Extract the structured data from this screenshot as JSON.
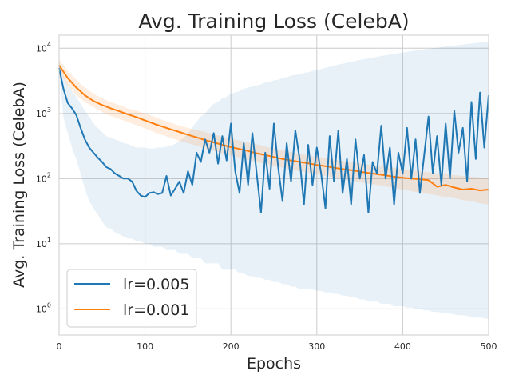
{
  "chart_data": {
    "type": "line",
    "title": "Avg. Training Loss (CelebA)",
    "xlabel": "Epochs",
    "ylabel": "Avg. Training Loss (CelebA)",
    "xlim": [
      0,
      500
    ],
    "ylim_log10": [
      -0.4,
      4.2
    ],
    "yscale": "log",
    "grid": true,
    "legend_position": "lower-left",
    "x_ticks": [
      0,
      100,
      200,
      300,
      400,
      500
    ],
    "x_tick_labels": [
      "0",
      "100",
      "200",
      "300",
      "400",
      "500"
    ],
    "y_ticks_log10": [
      0,
      1,
      2,
      3,
      4
    ],
    "y_tick_labels": [
      {
        "base": "10",
        "exp": "0"
      },
      {
        "base": "10",
        "exp": "1"
      },
      {
        "base": "10",
        "exp": "2"
      },
      {
        "base": "10",
        "exp": "3"
      },
      {
        "base": "10",
        "exp": "4"
      }
    ],
    "series": [
      {
        "name": "lr=0.005",
        "color": "#1f77b4",
        "band_color": "#1f77b4",
        "x": [
          0,
          5,
          10,
          15,
          20,
          25,
          30,
          35,
          40,
          45,
          50,
          55,
          60,
          65,
          70,
          75,
          80,
          85,
          90,
          95,
          100,
          105,
          110,
          115,
          120,
          125,
          130,
          135,
          140,
          145,
          150,
          155,
          160,
          165,
          170,
          175,
          180,
          185,
          190,
          195,
          200,
          205,
          210,
          215,
          220,
          225,
          230,
          235,
          240,
          245,
          250,
          255,
          260,
          265,
          270,
          275,
          280,
          285,
          290,
          295,
          300,
          305,
          310,
          315,
          320,
          325,
          330,
          335,
          340,
          345,
          350,
          355,
          360,
          365,
          370,
          375,
          380,
          385,
          390,
          395,
          400,
          405,
          410,
          415,
          420,
          425,
          430,
          435,
          440,
          445,
          450,
          455,
          460,
          465,
          470,
          475,
          480,
          485,
          490,
          495,
          500
        ],
        "values": [
          5000,
          2400,
          1450,
          1200,
          950,
          600,
          400,
          300,
          250,
          210,
          180,
          150,
          140,
          120,
          110,
          100,
          100,
          90,
          65,
          55,
          52,
          60,
          62,
          58,
          60,
          110,
          55,
          70,
          90,
          60,
          130,
          80,
          250,
          180,
          400,
          250,
          500,
          170,
          450,
          190,
          700,
          130,
          60,
          350,
          80,
          500,
          120,
          30,
          250,
          70,
          700,
          150,
          45,
          350,
          90,
          550,
          200,
          40,
          330,
          80,
          300,
          120,
          35,
          450,
          90,
          550,
          60,
          200,
          40,
          400,
          100,
          230,
          30,
          180,
          120,
          650,
          100,
          300,
          40,
          250,
          120,
          600,
          100,
          400,
          60,
          230,
          900,
          120,
          450,
          80,
          700,
          100,
          1100,
          250,
          600,
          90,
          1500,
          200,
          2100,
          300,
          1900
        ],
        "lower": [
          4200,
          900,
          500,
          300,
          200,
          120,
          70,
          45,
          35,
          28,
          22,
          18,
          17,
          15,
          14,
          13,
          12,
          12,
          11,
          11,
          10,
          10,
          9,
          9,
          9,
          8,
          8,
          8,
          7,
          7,
          7,
          6,
          6,
          6,
          5,
          5,
          5,
          5,
          4,
          4,
          4,
          4,
          3.5,
          3.5,
          3.2,
          3.2,
          3,
          3,
          2.8,
          2.8,
          2.6,
          2.6,
          2.4,
          2.4,
          2.2,
          2.2,
          2,
          2,
          2,
          2,
          1.9,
          1.9,
          1.8,
          1.8,
          1.7,
          1.7,
          1.6,
          1.6,
          1.5,
          1.5,
          1.4,
          1.4,
          1.3,
          1.3,
          1.3,
          1.2,
          1.2,
          1.2,
          1.1,
          1.1,
          1.1,
          1.05,
          1.05,
          1,
          1,
          0.95,
          0.95,
          0.9,
          0.9,
          0.88,
          0.85,
          0.85,
          0.82,
          0.8,
          0.8,
          0.78,
          0.76,
          0.75,
          0.74,
          0.72,
          0.7
        ],
        "upper": [
          6500,
          3800,
          2800,
          2200,
          1800,
          1400,
          1100,
          900,
          700,
          600,
          520,
          450,
          420,
          400,
          380,
          350,
          340,
          320,
          300,
          300,
          300,
          290,
          290,
          300,
          300,
          310,
          320,
          340,
          380,
          420,
          500,
          600,
          750,
          900,
          1000,
          1200,
          1400,
          1500,
          1700,
          1800,
          2000,
          2100,
          2200,
          2400,
          2500,
          2600,
          2700,
          2800,
          3000,
          3100,
          3200,
          3300,
          3500,
          3600,
          3800,
          3900,
          4000,
          4200,
          4300,
          4500,
          4600,
          4800,
          5000,
          5200,
          5400,
          5600,
          5800,
          6000,
          6200,
          6400,
          6600,
          6800,
          7000,
          7200,
          7400,
          7600,
          7800,
          8000,
          8200,
          8400,
          8600,
          8800,
          9000,
          9200,
          9400,
          9600,
          9800,
          10000,
          10200,
          10400,
          10600,
          10800,
          11000,
          11200,
          11400,
          11600,
          11800,
          12000,
          12200,
          12400,
          12600
        ]
      },
      {
        "name": "lr=0.001",
        "color": "#ff7f0e",
        "band_color": "#ff7f0e",
        "x": [
          0,
          10,
          20,
          30,
          40,
          50,
          60,
          70,
          80,
          90,
          100,
          110,
          120,
          130,
          140,
          150,
          160,
          170,
          180,
          190,
          200,
          210,
          220,
          230,
          240,
          250,
          260,
          270,
          280,
          290,
          300,
          310,
          320,
          330,
          340,
          350,
          360,
          370,
          380,
          390,
          400,
          410,
          420,
          430,
          440,
          450,
          460,
          470,
          480,
          490,
          500
        ],
        "values": [
          5500,
          3500,
          2500,
          1900,
          1550,
          1350,
          1200,
          1080,
          970,
          880,
          780,
          700,
          630,
          570,
          520,
          470,
          430,
          390,
          360,
          330,
          305,
          285,
          265,
          245,
          230,
          215,
          200,
          190,
          180,
          172,
          162,
          155,
          147,
          140,
          135,
          128,
          122,
          117,
          112,
          107,
          103,
          100,
          98,
          95,
          75,
          80,
          73,
          68,
          70,
          66,
          68
        ],
        "lower": [
          4500,
          2700,
          1900,
          1500,
          1250,
          1050,
          920,
          820,
          740,
          660,
          590,
          520,
          470,
          420,
          380,
          350,
          320,
          290,
          265,
          245,
          225,
          210,
          195,
          180,
          168,
          157,
          147,
          138,
          130,
          123,
          117,
          110,
          104,
          98,
          93,
          88,
          84,
          80,
          76,
          72,
          68,
          64,
          61,
          58,
          55,
          52,
          50,
          47,
          45,
          42,
          40
        ],
        "upper": [
          6700,
          4500,
          3300,
          2500,
          2000,
          1700,
          1500,
          1350,
          1200,
          1100,
          1000,
          900,
          800,
          720,
          650,
          600,
          560,
          520,
          480,
          440,
          410,
          385,
          360,
          335,
          312,
          290,
          272,
          255,
          240,
          227,
          215,
          205,
          195,
          187,
          179,
          172,
          165,
          158,
          152,
          146,
          140,
          135,
          130,
          125,
          121,
          117,
          113,
          110,
          107,
          104,
          100
        ]
      }
    ]
  }
}
